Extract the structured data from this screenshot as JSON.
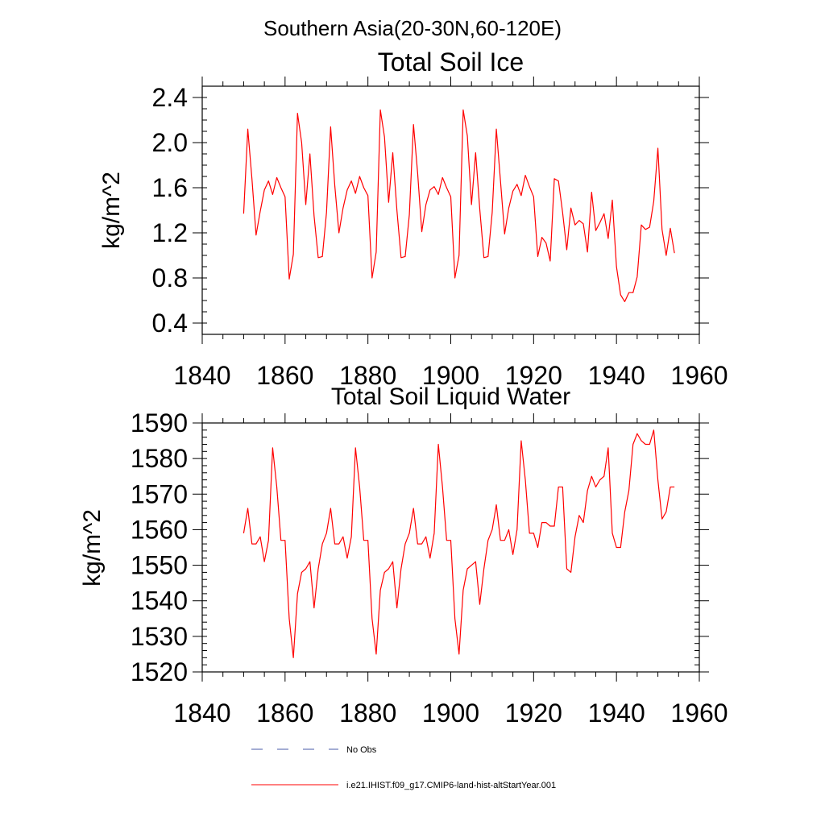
{
  "page_title": "Southern Asia(20-30N,60-120E)",
  "chart_data": [
    {
      "type": "line",
      "title": "Total Soil Ice",
      "xlabel": "",
      "ylabel": "kg/m^2",
      "xlim": [
        1840,
        1960
      ],
      "ylim": [
        0.3,
        2.5
      ],
      "xticks": [
        1840,
        1860,
        1880,
        1900,
        1920,
        1940,
        1960
      ],
      "ytick_labels": [
        "0.4",
        "0.8",
        "1.2",
        "1.6",
        "2.0",
        "2.4"
      ],
      "grid": false,
      "series": [
        {
          "color": "#ff0000",
          "x_start": 1850,
          "x_step": 1,
          "values": [
            1.37,
            2.12,
            1.68,
            1.18,
            1.39,
            1.58,
            1.66,
            1.54,
            1.69,
            1.6,
            1.52,
            0.79,
            1.01,
            2.26,
            2.0,
            1.45,
            1.9,
            1.35,
            0.98,
            0.99,
            1.38,
            2.14,
            1.62,
            1.2,
            1.42,
            1.58,
            1.66,
            1.55,
            1.7,
            1.6,
            1.53,
            0.8,
            1.03,
            2.29,
            2.05,
            1.47,
            1.91,
            1.4,
            0.98,
            0.99,
            1.36,
            2.16,
            1.73,
            1.21,
            1.45,
            1.58,
            1.61,
            1.54,
            1.69,
            1.6,
            1.52,
            0.8,
            1.0,
            2.29,
            2.06,
            1.45,
            1.91,
            1.41,
            0.98,
            0.99,
            1.38,
            2.12,
            1.66,
            1.19,
            1.42,
            1.57,
            1.63,
            1.53,
            1.71,
            1.61,
            1.52,
            0.99,
            1.16,
            1.11,
            0.95,
            1.68,
            1.66,
            1.38,
            1.05,
            1.42,
            1.27,
            1.31,
            1.28,
            1.03,
            1.56,
            1.22,
            1.29,
            1.37,
            1.15,
            1.49,
            0.9,
            0.65,
            0.59,
            0.67,
            0.67,
            0.81,
            1.27,
            1.23,
            1.25,
            1.48,
            1.95,
            1.23,
            1.0,
            1.24,
            1.02
          ]
        }
      ]
    },
    {
      "type": "line",
      "title": "Total Soil Liquid Water",
      "xlabel": "",
      "ylabel": "kg/m^2",
      "xlim": [
        1840,
        1960
      ],
      "ylim": [
        1520,
        1590
      ],
      "xticks": [
        1840,
        1860,
        1880,
        1900,
        1920,
        1940,
        1960
      ],
      "ytick_labels": [
        "1520",
        "1530",
        "1540",
        "1550",
        "1560",
        "1570",
        "1580",
        "1590"
      ],
      "grid": false,
      "series": [
        {
          "color": "#ff0000",
          "x_start": 1850,
          "x_step": 1,
          "values": [
            1559,
            1566,
            1556,
            1556,
            1558,
            1551,
            1557,
            1583,
            1572,
            1557,
            1557,
            1535,
            1524,
            1542,
            1548,
            1549,
            1551,
            1538,
            1549,
            1556,
            1559,
            1566,
            1556,
            1556,
            1558,
            1552,
            1558,
            1583,
            1572,
            1557,
            1557,
            1535,
            1525,
            1543,
            1548,
            1549,
            1551,
            1538,
            1549,
            1556,
            1559,
            1566,
            1556,
            1556,
            1558,
            1552,
            1559,
            1584,
            1572,
            1557,
            1557,
            1535,
            1525,
            1543,
            1549,
            1550,
            1551,
            1539,
            1549,
            1557,
            1560,
            1567,
            1557,
            1557,
            1560,
            1553,
            1560,
            1585,
            1574,
            1559,
            1559,
            1555,
            1562,
            1562,
            1561,
            1561,
            1572,
            1572,
            1549,
            1548,
            1558,
            1564,
            1562,
            1571,
            1575,
            1572,
            1574,
            1575,
            1583,
            1559,
            1555,
            1555,
            1565,
            1571,
            1584,
            1587,
            1585,
            1584,
            1584,
            1588,
            1574,
            1563,
            1565,
            1572,
            1572
          ]
        }
      ]
    }
  ],
  "legend": {
    "placement": "bottom",
    "entries": [
      {
        "label": "No Obs",
        "color": "#4a5ba8",
        "style": "dashed"
      },
      {
        "label": "i.e21.IHIST.f09_g17.CMIP6-land-hist-altStartYear.001",
        "color": "#ff0000",
        "style": "solid"
      }
    ]
  }
}
